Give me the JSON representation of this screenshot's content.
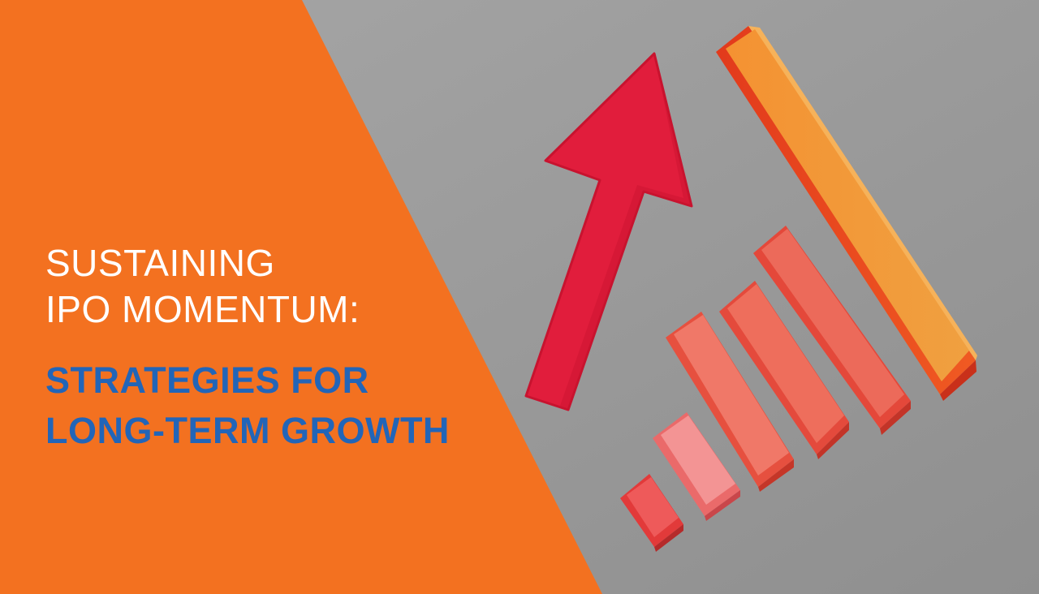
{
  "headline": {
    "line1": "SUSTAINING",
    "line2": "IPO MOMENTUM:",
    "line3": "STRATEGIES FOR",
    "line4": "LONG-TERM GROWTH"
  },
  "colors": {
    "panel_orange": "#f37120",
    "background_gray": "#9b9b9b",
    "headline_white": "#ffffff",
    "headline_blue": "#2265b8",
    "arrow_red": "#e11d3c",
    "bar_orange": "#f08a2a",
    "bar_coral": "#ea5f52",
    "bar_pink": "#f08a8a"
  },
  "illustration": {
    "arrow": "red-felt-up-arrow-icon",
    "bars": "wooden-ascending-bar-blocks"
  }
}
